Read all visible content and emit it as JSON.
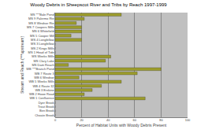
{
  "chart_data": {
    "type": "bar",
    "orientation": "horizontal",
    "title": "Woody Debris in Sheepscot River and Tribs by Reach 1997-1999",
    "x_label": "Percent of Habitat Units with Woody Debris Present",
    "y_label": "Stream and Reach (***upstream)",
    "categories": [
      "MS ***Bale Pond",
      "MS 9 Palermo Rte",
      "MS 8 Windsor Rte",
      "MS 7 Coopers Mills",
      "MS 6 Whitefield",
      "MS 5 Cooper Mill",
      "MS 4 Longfellow",
      "MS 3 Longfellow",
      "MS 2 Kings Mills",
      "MS 1 Head of Tide",
      "MS Weeks Mills",
      "MS Clary Lake",
      "MS Dam Reach",
      "WB ***Branch Pond",
      "WB 7 Route 3",
      "WB 6 Windsor",
      "WB 5 Weeks Mills",
      "WB 4 Route 32",
      "WB 3 Erskine",
      "WB 2 Howe Road",
      "WB 1 Confluence",
      "Dyer Brook",
      "Trout Brook",
      "Ben Brook",
      "Choate Brook"
    ],
    "values": [
      50,
      22,
      16,
      20,
      20,
      12,
      20,
      0,
      0,
      0,
      42,
      38,
      10,
      80,
      62,
      18,
      50,
      35,
      28,
      22,
      68,
      0,
      0,
      0,
      0
    ],
    "color": "#9c9c2c",
    "xlim": [
      0,
      100
    ],
    "xticks": [
      0,
      20,
      40,
      60,
      80,
      100
    ],
    "grid": true
  }
}
